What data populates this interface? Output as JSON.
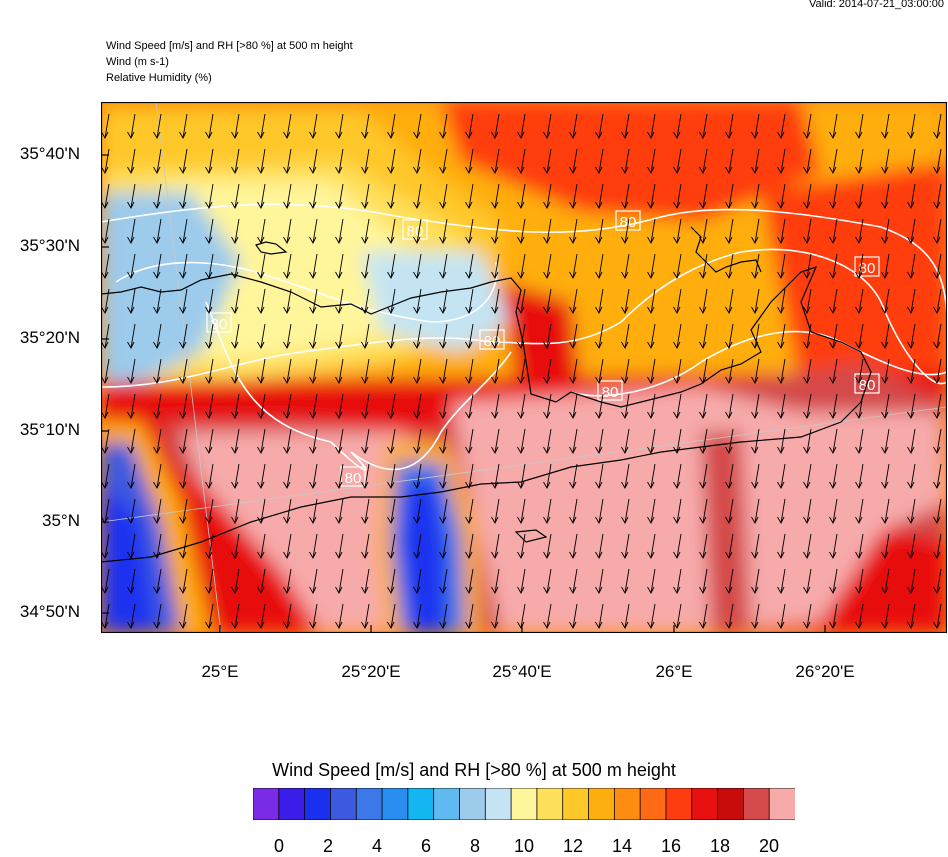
{
  "header": {
    "valid": "Valid: 2014-07-21_03:00:00",
    "line1": "Wind Speed [m/s] and RH [>80 %] at 500 m height",
    "line2": "Wind   (m s-1)",
    "line3": "Relative Humidity   (%)"
  },
  "map": {
    "lat_labels": [
      "35°40'N",
      "35°30'N",
      "35°20'N",
      "35°10'N",
      "35°N",
      "34°50'N"
    ],
    "lon_labels": [
      "25°E",
      "25°20'E",
      "25°40'E",
      "26°E",
      "26°20'E"
    ],
    "contour_label": "80",
    "wind_direction": "north-to-south (slightly southwest)",
    "features": [
      "coastline",
      "RH 80% contour (white)",
      "wind vectors",
      "lat/lon graticule"
    ]
  },
  "colorbar": {
    "title": "Wind Speed [m/s] and RH [>80 %] at 500 m height",
    "ticks": [
      "0",
      "2",
      "4",
      "6",
      "8",
      "10",
      "12",
      "14",
      "16",
      "18",
      "20"
    ],
    "colors": [
      "#7a2be6",
      "#3a1de8",
      "#1c30f0",
      "#3e5ae0",
      "#3d78e8",
      "#2a8ef0",
      "#13b6f0",
      "#5fbbef",
      "#9ccbec",
      "#c4e4f3",
      "#fff59a",
      "#ffe05a",
      "#ffc82a",
      "#ffae10",
      "#ff8c12",
      "#ff6a14",
      "#ff3c10",
      "#e81010",
      "#c80c0c",
      "#d44a4a",
      "#f7aaaa"
    ]
  }
}
